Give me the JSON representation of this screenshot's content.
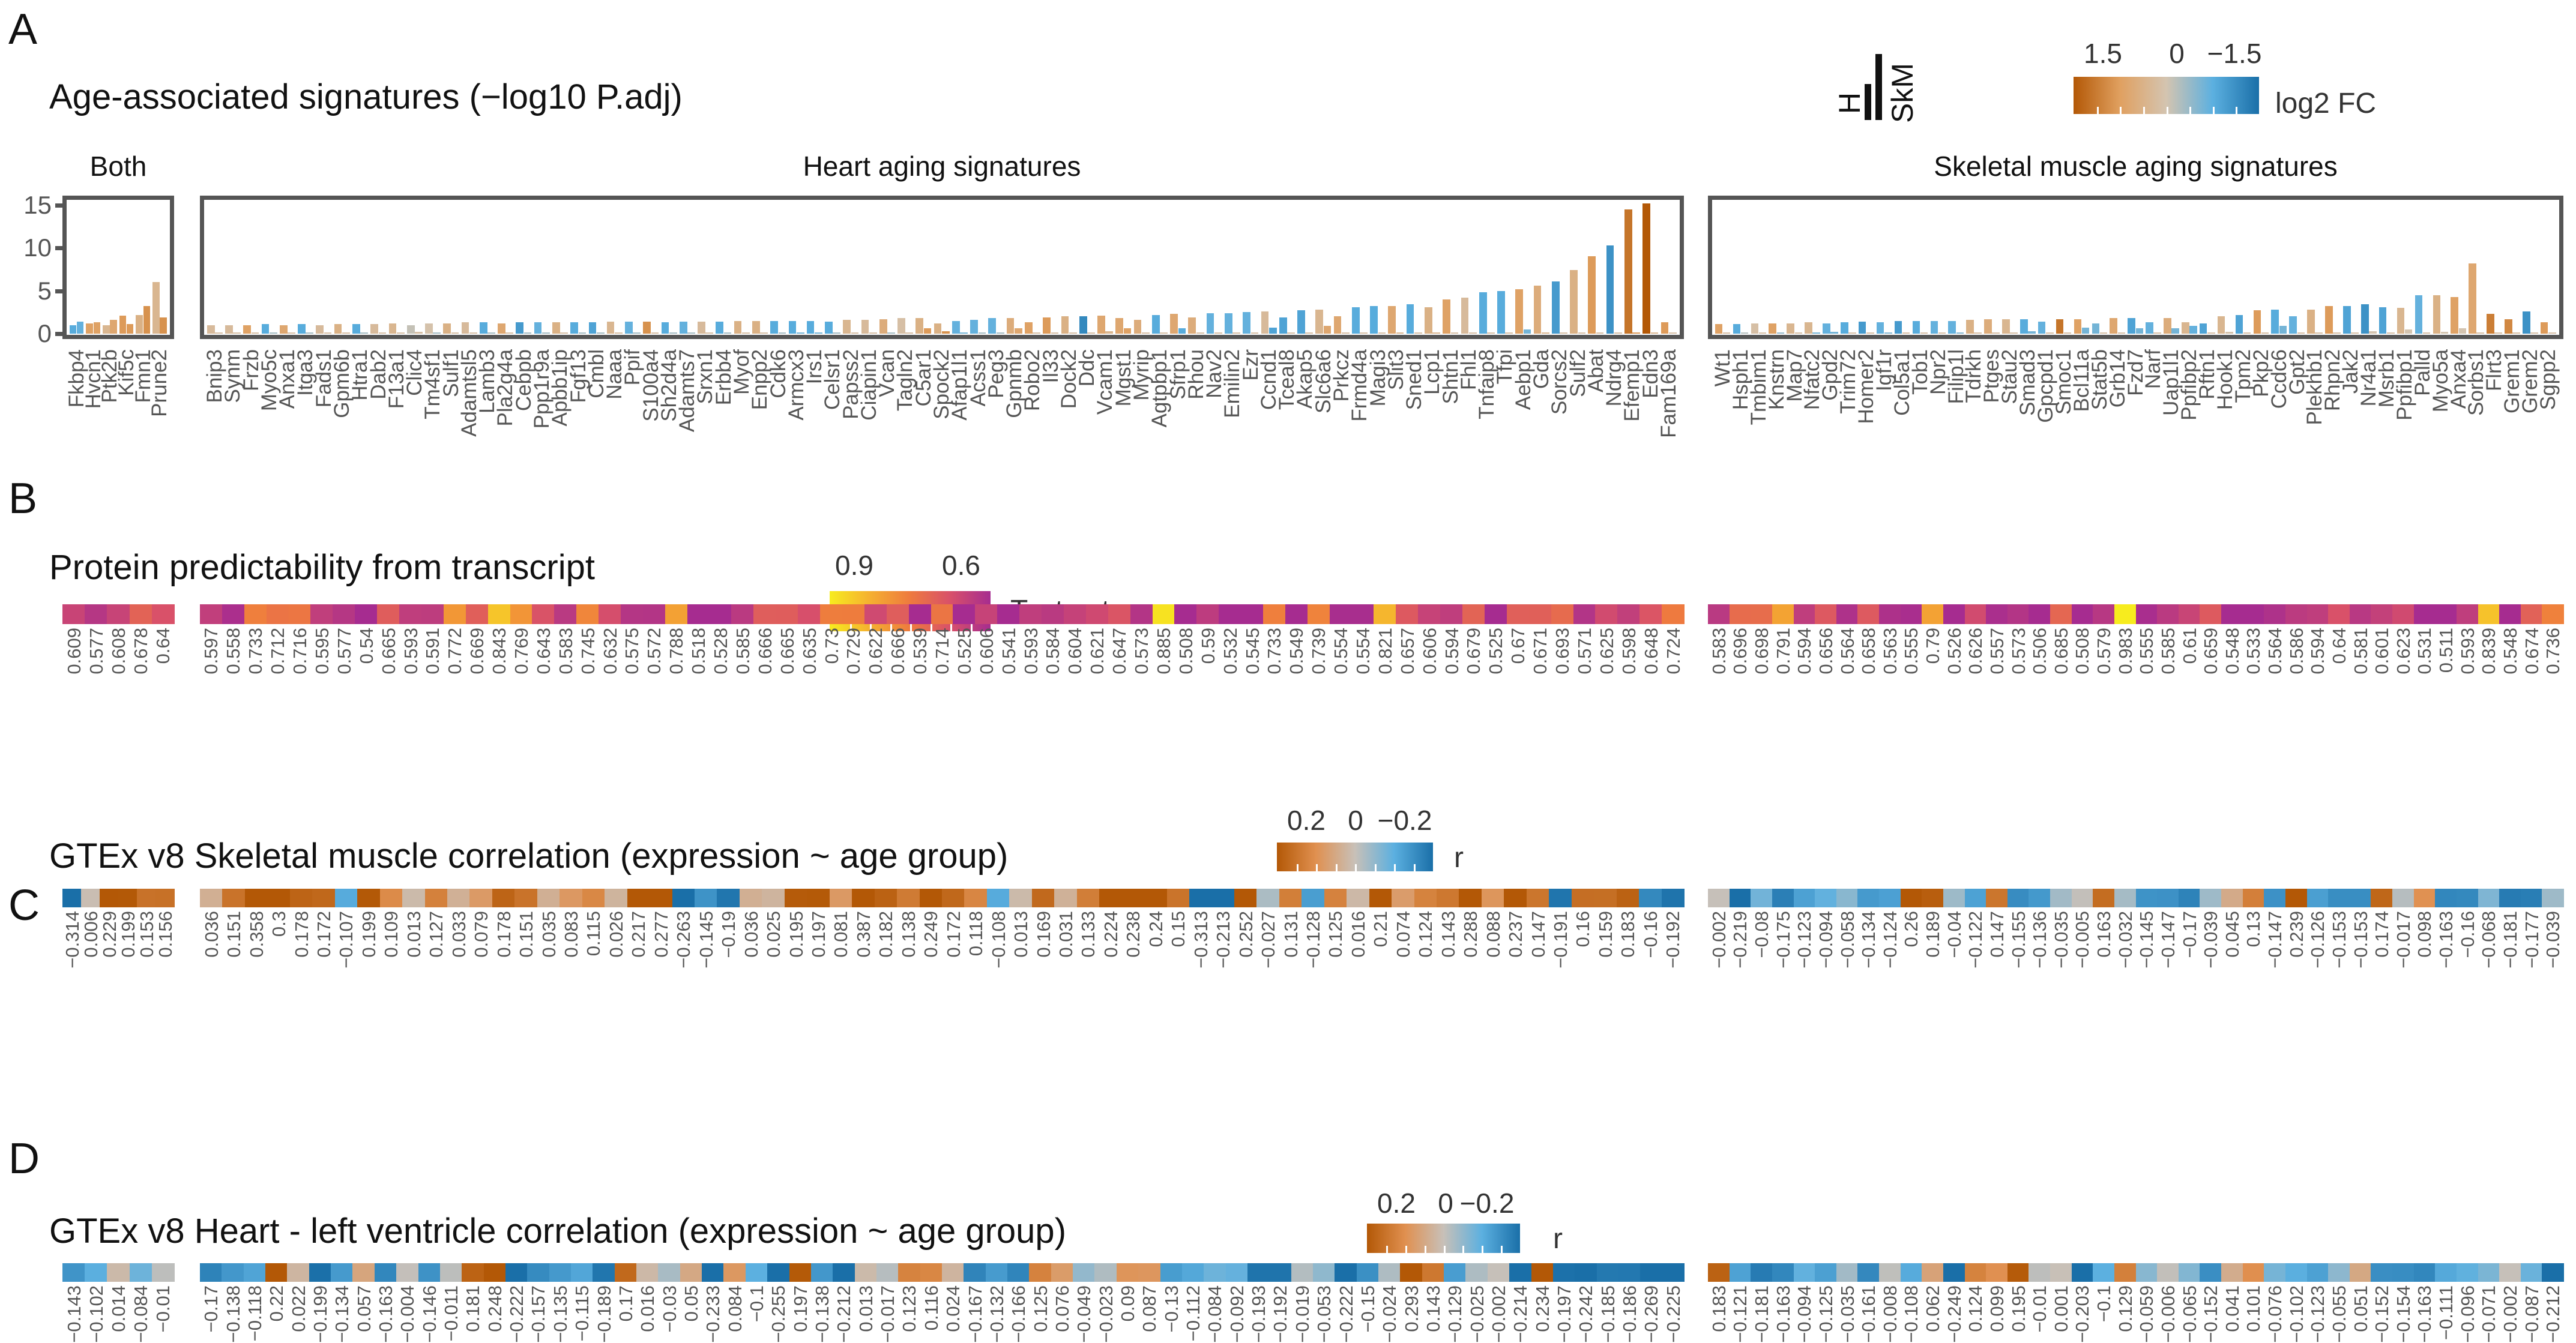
{
  "panel_letters": {
    "a": "A",
    "b": "B",
    "c": "C",
    "d": "D"
  },
  "titles": {
    "a": "Age-associated signatures (−log10 P.adj)",
    "b": "Protein predictability from transcript",
    "c": "GTEx v8 Skeletal muscle correlation (expression ~ age group)",
    "d": "GTEx v8 Heart - left ventricle correlation (expression ~ age group)"
  },
  "legend_tissue": {
    "h": "H",
    "skm": "SkM"
  },
  "legends": {
    "fc": {
      "ticks": [
        "1.5",
        "0",
        "−1.5"
      ],
      "name": "log2 FC",
      "colors": [
        "#b35806",
        "#e0a060",
        "#d4c4b0",
        "#5cb0e0",
        "#1a6fa8"
      ]
    },
    "r_test": {
      "ticks": [
        "0.9",
        "0.6"
      ],
      "name": "Test set r",
      "colors": [
        "#f7ec1e",
        "#f5b030",
        "#ee7a3e",
        "#d8506a",
        "#a62c90"
      ]
    },
    "r_skm": {
      "ticks": [
        "0.2",
        "0",
        "−0.2"
      ],
      "name": "r",
      "colors": [
        "#b35806",
        "#e09050",
        "#c8c0b8",
        "#5cb0e0",
        "#1a6fa8"
      ]
    },
    "r_heart": {
      "ticks": [
        "0.2",
        "0",
        "−0.2"
      ],
      "name": "r",
      "colors": [
        "#b35806",
        "#e09050",
        "#c8c0b8",
        "#5cb0e0",
        "#1a6fa8"
      ]
    }
  },
  "chart_data": {
    "type": "bar",
    "title": "Age-associated signatures (−log10 P.adj)",
    "ylabel": "−log10 P.adj",
    "ylim": [
      0,
      15.5
    ],
    "yticks": [
      "15",
      "10",
      "5",
      "0"
    ],
    "ytick_values": [
      15,
      10,
      5,
      0
    ],
    "panels": [
      {
        "key": "both",
        "label": "Both",
        "genes": [
          "Fkbp4",
          "Hvcn1",
          "Ptk2b",
          "Kif5c",
          "Fmn1",
          "Prune2"
        ],
        "h": [
          1.0,
          1.2,
          1.0,
          2.1,
          2.2,
          6.0
        ],
        "skm": [
          1.4,
          1.3,
          1.6,
          1.1,
          3.2,
          1.9
        ],
        "fc_h": [
          -0.8,
          0.7,
          0.3,
          0.8,
          0.4,
          0.3
        ],
        "fc_skm": [
          -0.7,
          0.7,
          0.6,
          0.8,
          0.9,
          0.9
        ],
        "protein_r": [
          "0.609",
          "0.577",
          "0.608",
          "0.678",
          "0.64"
        ],
        "gtex_skm_r": [
          "−0.314",
          "0.006",
          "0.229",
          "0.199",
          "0.153",
          "0.156"
        ],
        "gtex_heart_r": [
          "−0.143",
          "−0.102",
          "0.014",
          "−0.084",
          "−0.01"
        ]
      },
      {
        "key": "heart",
        "label": "Heart aging signatures",
        "genes": [
          "Bnip3",
          "Synm",
          "Frzb",
          "Myo5c",
          "Anxa1",
          "Itga3",
          "Fads1",
          "Gpm6b",
          "Htra1",
          "Dab2",
          "F13a1",
          "Clic4",
          "Tm4sf1",
          "Sulf1",
          "Adamtsl5",
          "Lamb3",
          "Pla2g4a",
          "Cebpb",
          "Ppp1r9a",
          "Apbb1ip",
          "Fgf13",
          "Cmbl",
          "Naaa",
          "Ppif",
          "S100a4",
          "Sh2d4a",
          "Adamts7",
          "Srxn1",
          "Erbb4",
          "Myof",
          "Enpp2",
          "Cdk6",
          "Armcx3",
          "Irs1",
          "Celsr1",
          "Papss2",
          "Ciapin1",
          "Vcan",
          "Tagln2",
          "C5ar1",
          "Spock2",
          "Afap1l1",
          "Acss1",
          "Peg3",
          "Gpnmb",
          "Robo2",
          "Il33",
          "Dock2",
          "Ddc",
          "Vcam1",
          "Mgst1",
          "Myrip",
          "Agtpbp1",
          "Sfrp1",
          "Rhou",
          "Nav2",
          "Emilin2",
          "Ezr",
          "Ccnd1",
          "Tceal8",
          "Akap5",
          "Slc6a6",
          "Prkcz",
          "Frmd4a",
          "Magi3",
          "Slit3",
          "Sned1",
          "Lcp1",
          "Shtn1",
          "Fhl1",
          "Tnfaip8",
          "Tfpi",
          "Aebp1",
          "Gda",
          "Sorcs2",
          "Sulf2",
          "Abat",
          "Ndrg4",
          "Efemp1",
          "Edn3",
          "Fam169a"
        ],
        "h": [
          1.0,
          1.0,
          1.0,
          1.1,
          1.0,
          1.1,
          1.0,
          1.1,
          1.1,
          1.1,
          1.2,
          1.0,
          1.2,
          1.2,
          1.3,
          1.3,
          1.2,
          1.3,
          1.3,
          1.3,
          1.3,
          1.3,
          1.4,
          1.4,
          1.4,
          1.3,
          1.4,
          1.4,
          1.4,
          1.5,
          1.5,
          1.5,
          1.5,
          1.5,
          1.4,
          1.6,
          1.6,
          1.7,
          1.8,
          1.8,
          1.2,
          1.5,
          1.6,
          1.8,
          1.8,
          1.3,
          1.9,
          2.0,
          2.0,
          2.1,
          1.8,
          1.6,
          2.2,
          2.3,
          1.9,
          2.4,
          2.4,
          2.5,
          2.6,
          1.9,
          2.7,
          2.8,
          2.0,
          3.1,
          3.2,
          3.2,
          3.4,
          3.1,
          4.0,
          4.2,
          4.8,
          5.0,
          5.2,
          5.6,
          6.1,
          7.4,
          9.0,
          10.3,
          14.5,
          15.2,
          1.3
        ],
        "skm": [
          0.1,
          0.1,
          0.1,
          0.1,
          0.1,
          0.1,
          0.1,
          0.1,
          0.1,
          0.1,
          0.1,
          0.2,
          0.1,
          0.1,
          0.1,
          0.1,
          0.1,
          0.1,
          0.1,
          0.1,
          0.1,
          0.1,
          0.1,
          0.1,
          0.1,
          0.1,
          0.1,
          0.1,
          0.1,
          0.1,
          0.1,
          0.1,
          0.1,
          0.1,
          0.1,
          0.1,
          0.1,
          0.1,
          0.1,
          0.6,
          0.3,
          0.1,
          0.1,
          0.1,
          0.6,
          0.1,
          0.1,
          0.1,
          0.1,
          0.3,
          0.6,
          0.1,
          0.1,
          0.6,
          0.1,
          0.1,
          0.1,
          0.1,
          0.7,
          0.1,
          0.1,
          0.9,
          0.1,
          0.1,
          0.1,
          0.1,
          0.1,
          0.1,
          0.1,
          0.1,
          0.1,
          0.1,
          0.5,
          0.1,
          0.1,
          0.1,
          0.1,
          0.1,
          0.1,
          0.1,
          0.1
        ],
        "fc_h": [
          0.2,
          0.2,
          0.7,
          -0.8,
          0.6,
          -0.8,
          0.2,
          0.4,
          -0.8,
          0.2,
          0.3,
          -0.1,
          0.05,
          0.4,
          0.2,
          -0.8,
          0.6,
          -1.0,
          -0.7,
          0.4,
          -0.8,
          -0.9,
          0.3,
          -0.7,
          0.9,
          -0.8,
          -0.7,
          0.2,
          -0.8,
          0.4,
          0.4,
          -0.8,
          -0.8,
          -0.8,
          -0.8,
          0.3,
          0.2,
          0.5,
          0.1,
          0.4,
          0.4,
          -0.7,
          -0.7,
          -0.7,
          0.5,
          0.7,
          0.8,
          0.4,
          -1.2,
          0.6,
          0.6,
          0.5,
          -0.8,
          0.6,
          0.5,
          -0.7,
          -0.7,
          -0.7,
          0.2,
          -0.9,
          -0.9,
          0.3,
          0.6,
          -0.8,
          -0.8,
          0.6,
          -0.8,
          0.4,
          0.7,
          0.2,
          -0.8,
          -0.8,
          0.7,
          0.5,
          -1.0,
          0.4,
          0.8,
          -1.1,
          1.2,
          1.5,
          0.8
        ],
        "fc_skm": [
          0.1,
          0.1,
          0.1,
          -0.3,
          0.1,
          -0.3,
          0.1,
          0.1,
          -0.3,
          0.1,
          0.1,
          0.1,
          -0.3,
          0.1,
          0.1,
          -0.3,
          0.1,
          -0.3,
          -0.3,
          0.1,
          -0.3,
          -0.3,
          0.1,
          -0.3,
          0.1,
          -0.3,
          -0.3,
          0.1,
          -0.3,
          0.1,
          0.1,
          -0.3,
          -0.6,
          -0.6,
          -0.3,
          0.1,
          0.1,
          -0.3,
          0.1,
          0.8,
          0.9,
          -0.6,
          -0.3,
          -0.3,
          0.6,
          0.1,
          0.1,
          0.1,
          0.1,
          0.3,
          0.7,
          0.1,
          0.1,
          -0.8,
          0.1,
          0.1,
          0.1,
          0.1,
          -0.9,
          0.1,
          0.1,
          0.6,
          0.1,
          0.1,
          0.1,
          0.3,
          0.1,
          0.3,
          0.1,
          0.1,
          0.1,
          0.1,
          -0.6,
          0.3,
          0.1,
          0.1,
          0.1,
          0.1,
          0.8,
          0.3,
          0.1
        ],
        "protein_r": [
          "0.597",
          "0.558",
          "0.733",
          "0.712",
          "0.716",
          "0.595",
          "0.577",
          "0.54",
          "0.665",
          "0.593",
          "0.591",
          "0.772",
          "0.669",
          "0.843",
          "0.769",
          "0.643",
          "0.583",
          "0.745",
          "0.632",
          "0.575",
          "0.572",
          "0.788",
          "0.518",
          "0.528",
          "0.585",
          "0.666",
          "0.665",
          "0.635",
          "0.73",
          "0.729",
          "0.622",
          "0.666",
          "0.539",
          "0.714",
          "0.525",
          "0.606",
          "0.541",
          "0.593",
          "0.584",
          "0.604",
          "0.621",
          "0.647",
          "0.573",
          "0.885",
          "0.508",
          "0.59",
          "0.532",
          "0.545",
          "0.733",
          "0.549",
          "0.739",
          "0.554",
          "0.554",
          "0.821",
          "0.657",
          "0.606",
          "0.594",
          "0.679",
          "0.525",
          "0.67",
          "0.671",
          "0.693",
          "0.571",
          "0.625",
          "0.598",
          "0.648",
          "0.724"
        ],
        "gtex_skm_r": [
          "0.036",
          "0.151",
          "0.358",
          "0.3",
          "0.178",
          "0.172",
          "−0.107",
          "0.199",
          "0.109",
          "0.013",
          "0.127",
          "0.033",
          "0.079",
          "0.178",
          "0.151",
          "0.035",
          "0.083",
          "0.115",
          "0.026",
          "0.217",
          "0.277",
          "−0.263",
          "−0.145",
          "−0.19",
          "0.036",
          "0.025",
          "0.195",
          "0.197",
          "0.081",
          "0.387",
          "0.182",
          "0.138",
          "0.249",
          "0.172",
          "0.118",
          "−0.108",
          "0.013",
          "0.169",
          "0.031",
          "0.133",
          "0.224",
          "0.238",
          "0.24",
          "0.15",
          "−0.313",
          "−0.213",
          "0.252",
          "−0.027",
          "0.131",
          "−0.128",
          "0.125",
          "0.016",
          "0.21",
          "0.074",
          "0.124",
          "0.143",
          "0.288",
          "0.088",
          "0.237",
          "0.147",
          "−0.191",
          "0.16",
          "0.159",
          "0.183",
          "−0.16",
          "−0.192"
        ],
        "gtex_heart_r": [
          "−0.17",
          "−0.138",
          "−0.118",
          "0.22",
          "0.022",
          "−0.199",
          "−0.134",
          "0.057",
          "−0.163",
          "−0.004",
          "−0.146",
          "−0.011",
          "0.181",
          "0.248",
          "−0.222",
          "−0.157",
          "−0.135",
          "−0.115",
          "−0.189",
          "0.17",
          "0.016",
          "−0.03",
          "0.05",
          "−0.233",
          "0.084",
          "−0.1",
          "−0.255",
          "0.197",
          "−0.138",
          "−0.212",
          "0.013",
          "−0.017",
          "0.123",
          "0.116",
          "0.024",
          "−0.167",
          "−0.132",
          "−0.166",
          "0.125",
          "0.076",
          "−0.049",
          "−0.023",
          "0.09",
          "0.087",
          "−0.13",
          "−0.112",
          "−0.084",
          "−0.092",
          "−0.193",
          "−0.192",
          "−0.019",
          "−0.053",
          "−0.222",
          "−0.15",
          "−0.024",
          "0.293",
          "0.143",
          "−0.129",
          "−0.025",
          "−0.002",
          "−0.214",
          "0.234",
          "−0.197",
          "−0.242",
          "−0.185",
          "−0.186",
          "−0.269",
          "−0.225"
        ]
      },
      {
        "key": "skm",
        "label": "Skeletal muscle aging signatures",
        "genes": [
          "Wt1",
          "Hsph1",
          "Tmbim1",
          "Knstrn",
          "Map7",
          "Nfatc2",
          "Gpd2",
          "Trim72",
          "Homer2",
          "Igf1r",
          "Col5a1",
          "Tob1",
          "Npr2",
          "Filip1l",
          "Tdrkh",
          "Ptges",
          "Stau2",
          "Smad3",
          "Gpcpd1",
          "Smoc1",
          "Bcl11a",
          "Stat5b",
          "Grb14",
          "Fzd7",
          "Narf",
          "Uap1l1",
          "Ppfibp2",
          "Rftn1",
          "Hook1",
          "Tpm2",
          "Pkp2",
          "Ccdc6",
          "Gpt2",
          "Plekhb1",
          "Rhpn2",
          "Jak2",
          "Nr4a1",
          "Msrb1",
          "Ppfibp1",
          "Palld",
          "Myo5a",
          "Anxa4",
          "Sorbs1",
          "Flrt3",
          "Grem1",
          "Grem2",
          "Sgpp2"
        ],
        "skm": [
          1.1,
          1.1,
          1.2,
          1.2,
          1.2,
          1.3,
          1.2,
          1.3,
          1.4,
          1.3,
          1.5,
          1.5,
          1.5,
          1.5,
          1.6,
          1.7,
          1.7,
          1.7,
          1.4,
          1.7,
          1.7,
          1.2,
          1.8,
          1.8,
          1.3,
          1.8,
          1.3,
          1.2,
          2.0,
          2.2,
          2.7,
          2.8,
          2.0,
          2.8,
          3.2,
          3.2,
          3.4,
          3.1,
          3.0,
          4.5,
          4.5,
          4.3,
          8.2,
          2.3,
          1.7,
          2.6,
          1.3
        ],
        "h": [
          0.05,
          0.05,
          0.05,
          0.1,
          0.05,
          0.1,
          0.2,
          0.05,
          0.05,
          0.1,
          0.05,
          0.05,
          0.05,
          0.1,
          0.1,
          0.05,
          0.05,
          0.3,
          0.05,
          0.05,
          0.7,
          0.05,
          0.05,
          0.6,
          0.05,
          0.6,
          0.9,
          0.05,
          0.2,
          0.05,
          0.05,
          0.9,
          0.05,
          0.05,
          0.05,
          0.05,
          0.3,
          0.05,
          0.5,
          0.05,
          0.2,
          0.6,
          0.05,
          0.05,
          0.05,
          0.05,
          0.05
        ],
        "fc_skm": [
          0.7,
          -0.8,
          0.1,
          0.7,
          0.3,
          0.3,
          -0.7,
          -0.8,
          -1.0,
          -0.7,
          -1.0,
          -0.8,
          -0.7,
          -0.7,
          0.4,
          0.5,
          0.3,
          -0.8,
          -0.7,
          1.2,
          0.7,
          -0.6,
          0.6,
          -0.9,
          -0.7,
          0.5,
          0.3,
          -0.9,
          0.3,
          -0.9,
          0.8,
          -0.8,
          -0.7,
          0.4,
          0.8,
          -0.9,
          -1.1,
          -0.9,
          0.3,
          -0.7,
          0.4,
          0.7,
          0.6,
          1.1,
          1.0,
          -1.1,
          0.8
        ],
        "fc_h": [
          0.1,
          -0.2,
          0.1,
          -0.4,
          0.1,
          -0.6,
          -0.6,
          0.1,
          0.1,
          -0.5,
          0.1,
          0.1,
          0.1,
          -0.5,
          0.1,
          0.1,
          0.1,
          -0.6,
          0.1,
          0.1,
          -0.6,
          0.1,
          0.1,
          -0.6,
          0.1,
          -0.6,
          -0.7,
          0.1,
          0.05,
          0.1,
          0.1,
          -0.6,
          0.1,
          0.1,
          0.1,
          0.1,
          0.0,
          0.1,
          0.0,
          0.1,
          0.0,
          0.0,
          0.1,
          0.1,
          0.1,
          0.1,
          0.1
        ],
        "protein_r": [
          "0.583",
          "0.696",
          "0.698",
          "0.791",
          "0.594",
          "0.656",
          "0.564",
          "0.658",
          "0.563",
          "0.555",
          "0.79",
          "0.526",
          "0.626",
          "0.557",
          "0.573",
          "0.506",
          "0.685",
          "0.508",
          "0.579",
          "0.983",
          "0.555",
          "0.585",
          "0.61",
          "0.659",
          "0.548",
          "0.533",
          "0.564",
          "0.586",
          "0.594",
          "0.64",
          "0.581",
          "0.601",
          "0.623",
          "0.531",
          "0.511",
          "0.593",
          "0.839",
          "0.548",
          "0.674",
          "0.736"
        ],
        "gtex_skm_r": [
          "−0.002",
          "−0.219",
          "−0.08",
          "−0.175",
          "−0.123",
          "−0.094",
          "−0.058",
          "−0.134",
          "−0.124",
          "0.26",
          "0.189",
          "−0.04",
          "−0.122",
          "0.147",
          "−0.155",
          "−0.136",
          "−0.035",
          "−0.005",
          "0.163",
          "−0.032",
          "−0.145",
          "−0.147",
          "−0.17",
          "−0.039",
          "0.045",
          "0.13",
          "−0.147",
          "0.239",
          "−0.126",
          "−0.153",
          "−0.153",
          "0.174",
          "−0.017",
          "0.098",
          "−0.163",
          "−0.16",
          "−0.068",
          "−0.181",
          "−0.177",
          "−0.039"
        ],
        "gtex_heart_r": [
          "0.183",
          "−0.121",
          "−0.181",
          "−0.163",
          "−0.094",
          "−0.125",
          "−0.035",
          "−0.161",
          "−0.008",
          "−0.108",
          "0.062",
          "−0.249",
          "0.124",
          "0.099",
          "0.195",
          "−0.01",
          "0.001",
          "−0.203",
          "−0.1",
          "0.129",
          "−0.059",
          "−0.006",
          "−0.065",
          "−0.152",
          "0.041",
          "0.101",
          "−0.076",
          "−0.102",
          "−0.123",
          "−0.055",
          "0.051",
          "−0.152",
          "−0.154",
          "−0.163",
          "−0.111",
          "−0.096",
          "−0.071",
          "−0.002",
          "−0.087",
          "−0.212"
        ]
      }
    ]
  }
}
